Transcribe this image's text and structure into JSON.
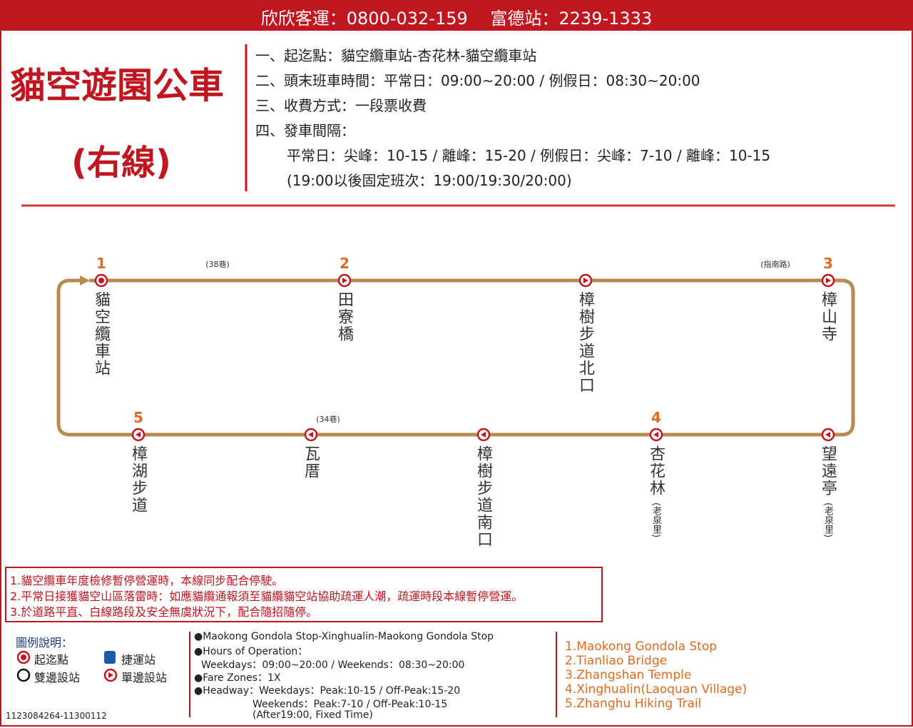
{
  "header": {
    "contact": "欣欣客運：0800-032-159　 富德站：2239-1333"
  },
  "title": "貓空遊園公車",
  "subtitle": "(右線)",
  "info": [
    "一、起迄點：貓空纜車站-杏花林-貓空纜車站",
    "二、頭末班車時間：平常日：09:00~20:00 / 例假日：08:30~20:00",
    "三、收費方式：一段票收費",
    "四、發車間隔：",
    "平常日：尖峰：10-15 / 離峰：15-20 / 例假日：尖峰：7-10 / 離峰：10-15",
    "(19:00以後固定班次：19:00/19:30/20:00)"
  ],
  "route": {
    "road_labels": [
      "(38巷)",
      "(指南路)",
      "(34巷)"
    ],
    "stations": [
      {
        "number": "1",
        "name": "貓空纜車站"
      },
      {
        "number": "2",
        "name": "田寮橋"
      },
      {
        "name": "樟樹步道北口"
      },
      {
        "number": "3",
        "name": "樟山寺"
      },
      {
        "name": "望遠亭",
        "note": "(老泉里)"
      },
      {
        "number": "4",
        "name": "杏花林",
        "note": "(老泉里)"
      },
      {
        "name": "樟樹步道南口"
      },
      {
        "name": "瓦厝"
      },
      {
        "number": "5",
        "name": "樟湖步道"
      }
    ]
  },
  "notices": [
    "1.貓空纜車年度檢修暫停營運時，本線同步配合停駛。",
    "2.平常日接獲貓空山區落雷時：如應貓纜通報須至貓纜貓空站協助疏運人潮，疏運時段本線暫停營運。",
    "3.於道路平直、白線路段及安全無虞狀況下，配合隨招隨停。"
  ],
  "legend": {
    "title": "圖例說明：",
    "items": [
      "起迄點",
      "捷運站",
      "雙邊設站",
      "單邊設站"
    ]
  },
  "english": [
    "●Maokong Gondola Stop-Xinghualin-Maokong Gondola Stop",
    "●Hours of Operation：",
    "Weekdays：09:00~20:00 / Weekends：08:30~20:00",
    "●Fare Zones：1X",
    "●Headway：Weekdays：Peak:10-15 / Off-Peak:15-20",
    "Weekends：Peak:7-10 / Off-Peak:10-15",
    "(After19:00, Fixed Time)"
  ],
  "stops_en": [
    "1.Maokong Gondola Stop",
    "2.Tianliao Bridge",
    "3.Zhangshan Temple",
    "4.Xinghualin(Laoquan Village)",
    "5.Zhanghu Hiking Trail"
  ],
  "code": "1123084264-11300112"
}
